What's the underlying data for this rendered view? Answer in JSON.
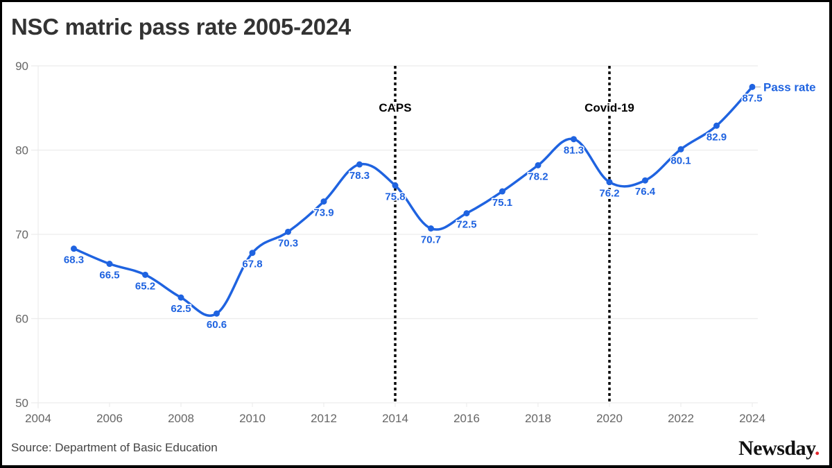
{
  "header": {
    "title": "NSC matric pass rate 2005-2024"
  },
  "footer": {
    "source": "Source: Department of Basic Education",
    "logo": "Newsday",
    "logo_dot": "."
  },
  "colors": {
    "series": "#1f63e0",
    "annotation": "#000000",
    "grid": "#ececec",
    "logo_dot": "#e3262c"
  },
  "chart_data": {
    "type": "line",
    "title": "NSC matric pass rate 2005-2024",
    "xlabel": "",
    "ylabel": "",
    "x": [
      2005,
      2006,
      2007,
      2008,
      2009,
      2010,
      2011,
      2012,
      2013,
      2014,
      2015,
      2016,
      2017,
      2018,
      2019,
      2020,
      2021,
      2022,
      2023,
      2024
    ],
    "series": [
      {
        "name": "Pass rate",
        "values": [
          68.3,
          66.5,
          65.2,
          62.5,
          60.6,
          67.8,
          70.3,
          73.9,
          78.3,
          75.8,
          70.7,
          72.5,
          75.1,
          78.2,
          81.3,
          76.2,
          76.4,
          80.1,
          82.9,
          87.5
        ]
      }
    ],
    "xlim": [
      2004,
      2024
    ],
    "ylim": [
      50,
      90
    ],
    "xticks": [
      2004,
      2006,
      2008,
      2010,
      2012,
      2014,
      2016,
      2018,
      2020,
      2022,
      2024
    ],
    "yticks": [
      50,
      60,
      70,
      80,
      90
    ],
    "grid": true,
    "legend": "end-of-line label",
    "annotations": [
      {
        "x": 2014,
        "label": "CAPS",
        "style": "dotted vertical line"
      },
      {
        "x": 2020,
        "label": "Covid-19",
        "style": "dotted vertical line"
      }
    ],
    "source": "Source: Department of Basic Education"
  }
}
